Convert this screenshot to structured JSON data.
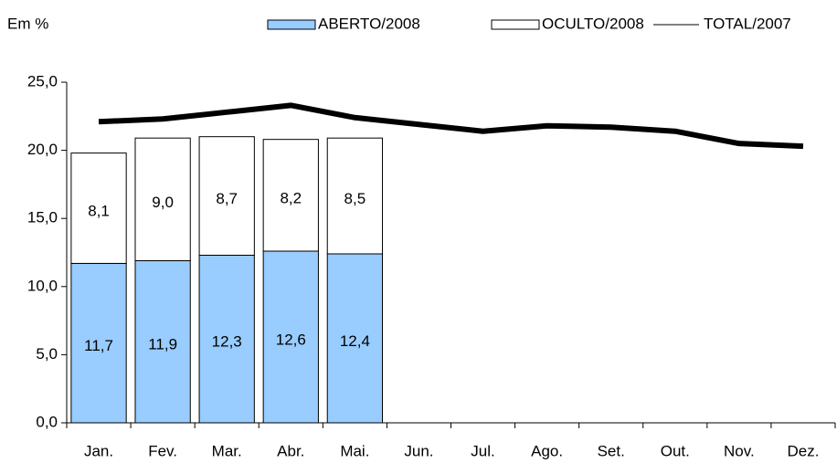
{
  "chart_data": {
    "type": "bar",
    "stacked": true,
    "unit_label": "Em %",
    "categories": [
      "Jan.",
      "Fev.",
      "Mar.",
      "Abr.",
      "Mai.",
      "Jun.",
      "Jul.",
      "Ago.",
      "Set.",
      "Out.",
      "Nov.",
      "Dez."
    ],
    "series": [
      {
        "name": "ABERTO/2008",
        "type": "bar",
        "color": "#99ccff",
        "values": [
          11.7,
          11.9,
          12.3,
          12.6,
          12.4,
          null,
          null,
          null,
          null,
          null,
          null,
          null
        ],
        "value_labels": [
          "11,7",
          "11,9",
          "12,3",
          "12,6",
          "12,4",
          null,
          null,
          null,
          null,
          null,
          null,
          null
        ]
      },
      {
        "name": "OCULTO/2008",
        "type": "bar",
        "color": "#ffffff",
        "values": [
          8.1,
          9.0,
          8.7,
          8.2,
          8.5,
          null,
          null,
          null,
          null,
          null,
          null,
          null
        ],
        "value_labels": [
          "8,1",
          "9,0",
          "8,7",
          "8,2",
          "8,5",
          null,
          null,
          null,
          null,
          null,
          null,
          null
        ]
      },
      {
        "name": "TOTAL/2007",
        "type": "line",
        "color": "#000000",
        "values": [
          22.1,
          22.3,
          22.8,
          23.3,
          22.4,
          21.9,
          21.4,
          21.8,
          21.7,
          21.4,
          20.5,
          20.3
        ]
      }
    ],
    "ylim": [
      0,
      25
    ],
    "yticks": [
      {
        "value": 0,
        "label": "0,0"
      },
      {
        "value": 5,
        "label": "5,0"
      },
      {
        "value": 10,
        "label": "10,0"
      },
      {
        "value": 15,
        "label": "15,0"
      },
      {
        "value": 20,
        "label": "20,0"
      },
      {
        "value": 25,
        "label": "25,0"
      }
    ],
    "grid": false
  }
}
